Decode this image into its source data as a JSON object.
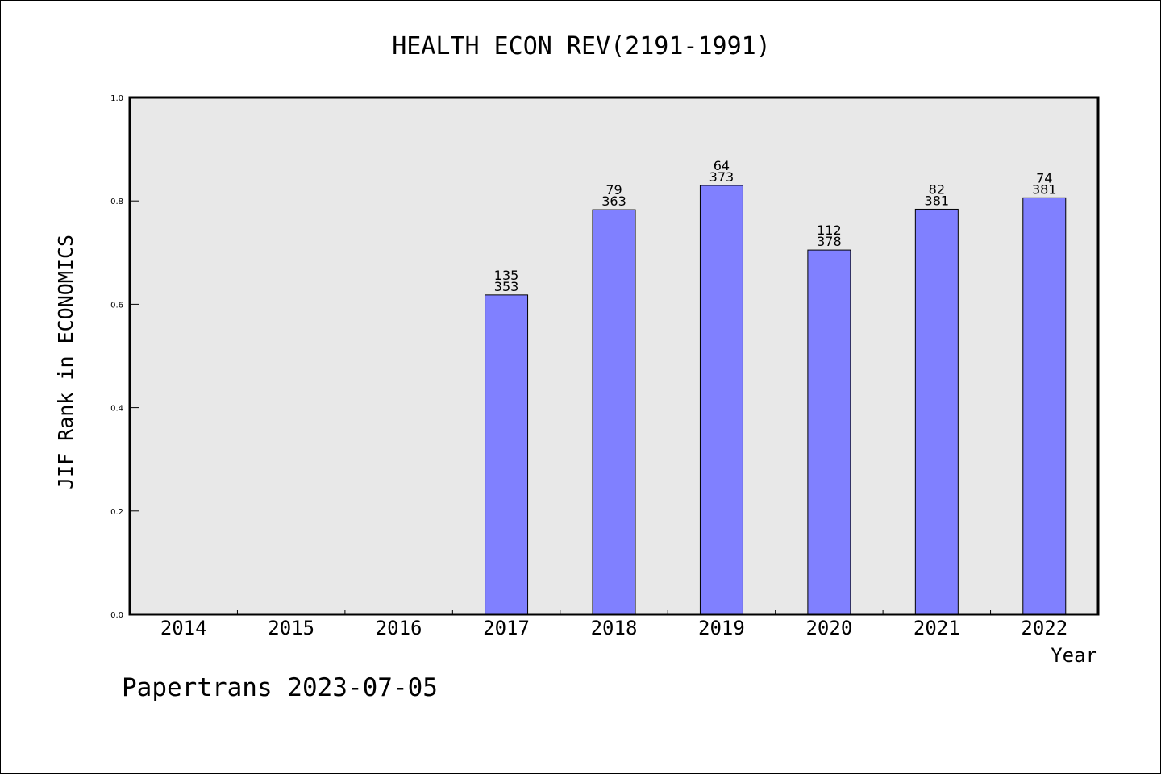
{
  "chart_data": {
    "type": "bar",
    "title": "HEALTH ECON REV(2191-1991)",
    "xlabel": "Year",
    "ylabel": "JIF Rank in ECONOMICS",
    "ylim": [
      0.0,
      1.0
    ],
    "yticks": [
      "0.0",
      "0.2",
      "0.4",
      "0.6",
      "0.8",
      "1.0"
    ],
    "grid": false,
    "categories": [
      "2014",
      "2015",
      "2016",
      "2017",
      "2018",
      "2019",
      "2020",
      "2021",
      "2022"
    ],
    "values": [
      null,
      null,
      null,
      0.618,
      0.783,
      0.83,
      0.705,
      0.784,
      0.806
    ],
    "labels": [
      null,
      null,
      null,
      [
        "135",
        "353"
      ],
      [
        "79",
        "363"
      ],
      [
        "64",
        "373"
      ],
      [
        "112",
        "378"
      ],
      [
        "82",
        "381"
      ],
      [
        "74",
        "381"
      ]
    ],
    "colors": {
      "bar": "#8080ff",
      "plot_bg": "#e8e8e8",
      "axis": "#000000"
    }
  },
  "footer": "Papertrans 2023-07-05"
}
